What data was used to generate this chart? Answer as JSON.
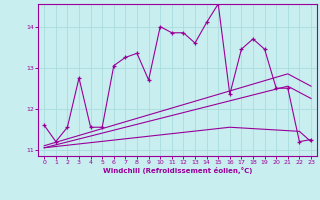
{
  "title": "",
  "xlabel": "Windchill (Refroidissement éolien,°C)",
  "bg_color": "#c8eef0",
  "grid_color": "#aadddd",
  "line_color": "#990099",
  "xlim": [
    -0.5,
    23.5
  ],
  "ylim": [
    10.85,
    14.55
  ],
  "yticks": [
    11,
    12,
    13,
    14
  ],
  "xticks": [
    0,
    1,
    2,
    3,
    4,
    5,
    6,
    7,
    8,
    9,
    10,
    11,
    12,
    13,
    14,
    15,
    16,
    17,
    18,
    19,
    20,
    21,
    22,
    23
  ],
  "main_x": [
    0,
    1,
    2,
    3,
    4,
    5,
    6,
    7,
    8,
    9,
    10,
    11,
    12,
    13,
    14,
    15,
    16,
    17,
    18,
    19,
    20,
    21,
    22,
    23
  ],
  "main_y": [
    11.6,
    11.2,
    11.55,
    12.75,
    11.55,
    11.55,
    13.05,
    13.25,
    13.35,
    12.7,
    14.0,
    13.85,
    13.85,
    13.6,
    14.1,
    14.55,
    12.35,
    13.45,
    13.7,
    13.45,
    12.5,
    12.5,
    11.2,
    11.25
  ],
  "line1_x": [
    0,
    21,
    23
  ],
  "line1_y": [
    11.1,
    12.85,
    12.55
  ],
  "line2_x": [
    0,
    21,
    23
  ],
  "line2_y": [
    11.05,
    12.55,
    12.25
  ],
  "line3_x": [
    0,
    16,
    22,
    23
  ],
  "line3_y": [
    11.05,
    11.55,
    11.45,
    11.2
  ]
}
